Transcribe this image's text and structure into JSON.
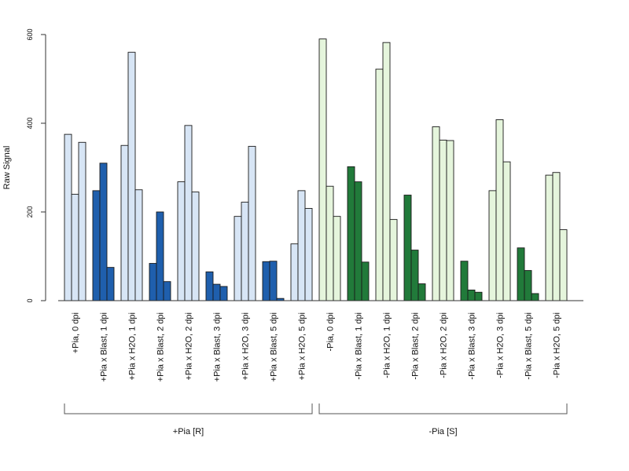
{
  "chart_data": {
    "type": "bar",
    "ylabel": "Raw Signal",
    "ylim": [
      0,
      600
    ],
    "yticks": [
      0,
      200,
      400,
      600
    ],
    "grid": false,
    "legend": "none",
    "colors": {
      "light_blue": "#d7e5f5",
      "dark_blue": "#1f5fad",
      "light_green": "#e5f5dc",
      "dark_green": "#217a3a"
    },
    "categories": [
      "+Pia, 0 dpi",
      "+Pia x Blast, 1 dpi",
      "+Pia x H2O, 1 dpi",
      "+Pia x Blast, 2 dpi",
      "+Pia x H2O, 2 dpi",
      "+Pia x Blast, 3 dpi",
      "+Pia x H2O, 3 dpi",
      "+Pia x Blast, 5 dpi",
      "+Pia x H2O, 5 dpi",
      "-Pia, 0 dpi",
      "-Pia x Blast, 1 dpi",
      "-Pia x H2O, 1 dpi",
      "-Pia x Blast, 2 dpi",
      "-Pia x H2O, 2 dpi",
      "-Pia x Blast, 3 dpi",
      "-Pia x H2O, 3 dpi",
      "-Pia x Blast, 5 dpi",
      "-Pia x H2O, 5 dpi"
    ],
    "category_colors": [
      "light_blue",
      "dark_blue",
      "light_blue",
      "dark_blue",
      "light_blue",
      "dark_blue",
      "light_blue",
      "dark_blue",
      "light_blue",
      "light_green",
      "dark_green",
      "light_green",
      "dark_green",
      "light_green",
      "dark_green",
      "light_green",
      "dark_green",
      "light_green"
    ],
    "replicates": [
      [
        375,
        240,
        357
      ],
      [
        248,
        310,
        75
      ],
      [
        350,
        560,
        250
      ],
      [
        84,
        200,
        43
      ],
      [
        268,
        395,
        245
      ],
      [
        65,
        37,
        32
      ],
      [
        190,
        222,
        348
      ],
      [
        88,
        89,
        5
      ],
      [
        128,
        248,
        208
      ],
      [
        590,
        258,
        190
      ],
      [
        302,
        268,
        87
      ],
      [
        522,
        582,
        183
      ],
      [
        238,
        114,
        38
      ],
      [
        392,
        362,
        361
      ],
      [
        89,
        24,
        19
      ],
      [
        248,
        408,
        313
      ],
      [
        119,
        68,
        16
      ],
      [
        283,
        289,
        160
      ]
    ],
    "groups": [
      {
        "label": "+Pia [R]",
        "from": 0,
        "to": 8
      },
      {
        "label": "-Pia [S]",
        "from": 9,
        "to": 17
      }
    ]
  }
}
